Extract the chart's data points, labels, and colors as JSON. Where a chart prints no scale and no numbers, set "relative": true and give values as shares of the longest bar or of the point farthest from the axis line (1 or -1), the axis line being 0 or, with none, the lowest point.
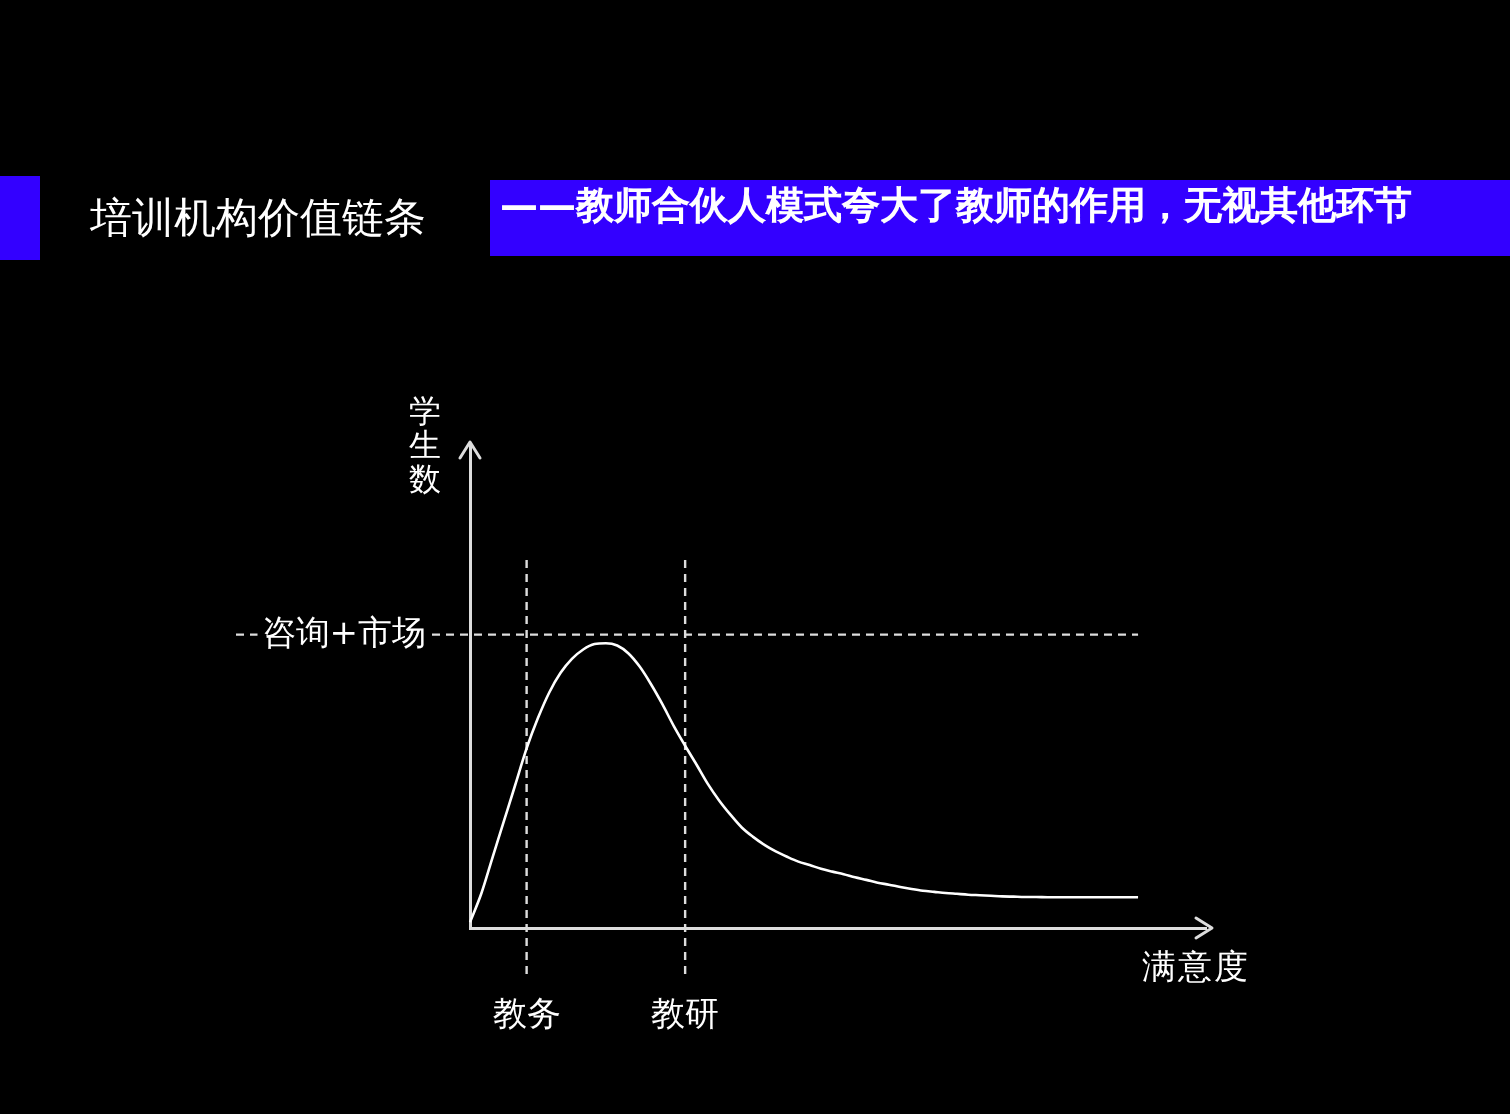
{
  "chart_data": {
    "type": "line",
    "title": "培训机构价值链条",
    "subtitle": "——教师合伙人模式夸大了教师的作用，无视其他环节",
    "xlabel": "满意度",
    "ylabel": "学生数",
    "categories": [
      null,
      null,
      null,
      null,
      null,
      "教务",
      null,
      null,
      null,
      null,
      null,
      null,
      null,
      null,
      null,
      null,
      null,
      null,
      null,
      "教研",
      null,
      null,
      null,
      null,
      null,
      null,
      null,
      null,
      null,
      null,
      null,
      null,
      null,
      null,
      null,
      null,
      null,
      null,
      null,
      null,
      null,
      null,
      null,
      null,
      null,
      null,
      null,
      null,
      null,
      null,
      null,
      null,
      null,
      null,
      null,
      null,
      null,
      null,
      null,
      null,
      null,
      null,
      null,
      null,
      null,
      null
    ],
    "series": [
      {
        "color": "#ffffff",
        "values": [
          0.02,
          0.121,
          0.249,
          0.376,
          0.503,
          0.631,
          0.737,
          0.827,
          0.896,
          0.945,
          0.978,
          0.997,
          1,
          0.992,
          0.964,
          0.917,
          0.855,
          0.785,
          0.709,
          0.64,
          0.574,
          0.506,
          0.448,
          0.398,
          0.353,
          0.32,
          0.292,
          0.269,
          0.25,
          0.233,
          0.221,
          0.208,
          0.198,
          0.189,
          0.178,
          0.169,
          0.159,
          0.152,
          0.144,
          0.137,
          0.131,
          0.127,
          0.123,
          0.12,
          0.117,
          0.115,
          0.113,
          0.111,
          0.11,
          0.109,
          0.109,
          0.108,
          0.108,
          0.108,
          0.108,
          0.108,
          0.108,
          0.108,
          0.108,
          0.108,
          null,
          null,
          null,
          null,
          null,
          null
        ]
      }
    ],
    "relative": true,
    "ref_lines": [
      {
        "axis": "x",
        "value": "教务",
        "color": "#dddddd",
        "line_style": "dashed"
      },
      {
        "axis": "x",
        "value": "教研",
        "color": "#dddddd",
        "line_style": "dashed"
      },
      {
        "axis": "y",
        "value": 1.03,
        "label": "咨询+市场",
        "color": "#dddddd",
        "line_style": "dashed"
      }
    ],
    "marker": "none"
  }
}
